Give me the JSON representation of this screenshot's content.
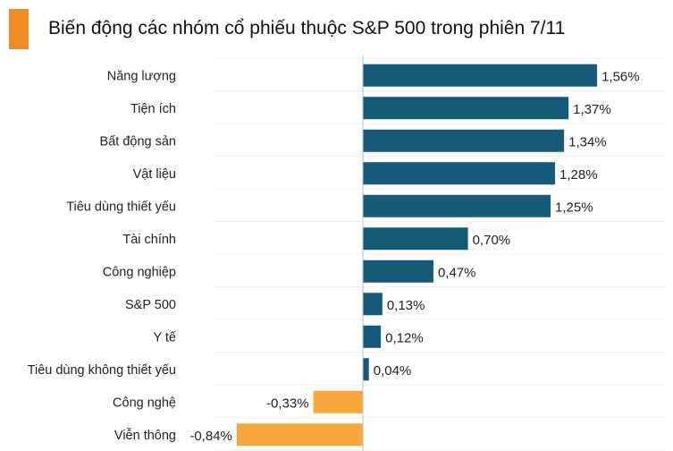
{
  "chart_data": {
    "type": "bar",
    "orientation": "horizontal",
    "title": "Biến động các nhóm cổ phiếu thuộc S&P 500 trong phiên 7/11",
    "categories": [
      "Năng lượng",
      "Tiện ích",
      "Bất động sản",
      "Vật liệu",
      "Tiêu dùng thiết yếu",
      "Tài chính",
      "Công nghiệp",
      "S&P 500",
      "Y tế",
      "Tiêu dùng không thiết yếu",
      "Công nghệ",
      "Viễn thông"
    ],
    "values": [
      1.56,
      1.37,
      1.34,
      1.28,
      1.25,
      0.7,
      0.47,
      0.13,
      0.12,
      0.04,
      -0.33,
      -0.84
    ],
    "labels": [
      "1,56%",
      "1,37%",
      "1,34%",
      "1,28%",
      "1,25%",
      "0,70%",
      "0,47%",
      "0,13%",
      "0,12%",
      "0,04%",
      "-0,33%",
      "-0,84%"
    ],
    "xlim": [
      -0.84,
      1.56
    ],
    "unit": "%",
    "colors": {
      "positive": "#155a78",
      "negative": "#f9a73c",
      "accent": "#f28a24"
    }
  }
}
